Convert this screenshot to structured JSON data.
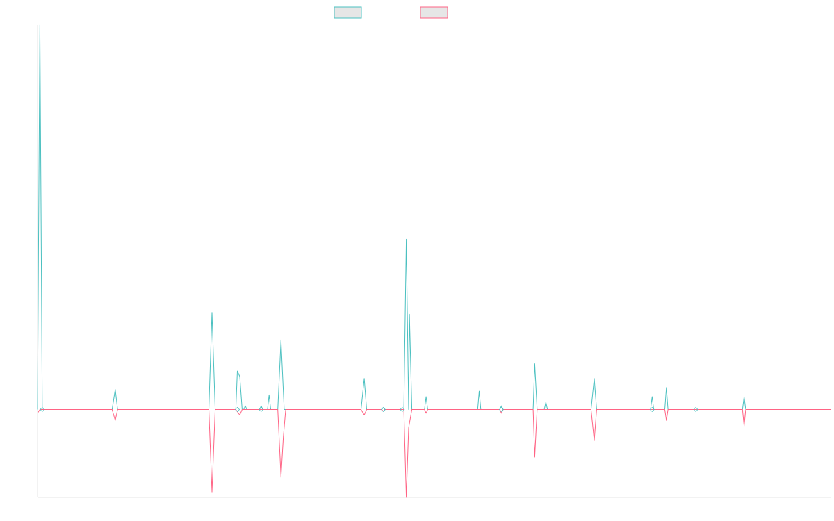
{
  "chart_data": {
    "type": "line",
    "title": "",
    "xlabel": "",
    "ylabel": "",
    "grid": false,
    "legend": "top-center",
    "colors": {
      "series_a": "#4bc0c0",
      "series_b": "#ff6384",
      "axis": "#e5e5e5"
    },
    "ylim": [
      -48,
      210
    ],
    "series": [
      {
        "points": [
          [
            0.0,
            0
          ],
          [
            0.3,
            210
          ],
          [
            0.6,
            0
          ],
          [
            1.0,
            0
          ],
          [
            9.4,
            0
          ],
          [
            9.8,
            11
          ],
          [
            10.1,
            0
          ],
          [
            21.6,
            0
          ],
          [
            22.0,
            53
          ],
          [
            22.4,
            0
          ],
          [
            25.0,
            0
          ],
          [
            25.2,
            21
          ],
          [
            25.5,
            18
          ],
          [
            25.8,
            0
          ],
          [
            26.0,
            0
          ],
          [
            26.2,
            2
          ],
          [
            26.4,
            0
          ],
          [
            28.0,
            0
          ],
          [
            28.2,
            2
          ],
          [
            28.4,
            0
          ],
          [
            29.0,
            0
          ],
          [
            29.2,
            8
          ],
          [
            29.4,
            0
          ],
          [
            30.3,
            0
          ],
          [
            30.7,
            38
          ],
          [
            31.1,
            0
          ],
          [
            40.8,
            0
          ],
          [
            41.2,
            17
          ],
          [
            41.5,
            0
          ],
          [
            43.4,
            0
          ],
          [
            43.6,
            1
          ],
          [
            43.8,
            0
          ],
          [
            46.2,
            0
          ],
          [
            46.5,
            93
          ],
          [
            46.8,
            0
          ],
          [
            46.9,
            52
          ],
          [
            47.2,
            0
          ],
          [
            48.8,
            0
          ],
          [
            49.0,
            7
          ],
          [
            49.2,
            0
          ],
          [
            55.5,
            0
          ],
          [
            55.7,
            10
          ],
          [
            55.9,
            0
          ],
          [
            58.3,
            0
          ],
          [
            58.5,
            2
          ],
          [
            58.7,
            0
          ],
          [
            62.5,
            0
          ],
          [
            62.7,
            25
          ],
          [
            63.0,
            0
          ],
          [
            63.9,
            0
          ],
          [
            64.1,
            4
          ],
          [
            64.3,
            0
          ],
          [
            69.8,
            0
          ],
          [
            70.2,
            17
          ],
          [
            70.5,
            0
          ],
          [
            77.3,
            0
          ],
          [
            77.5,
            7
          ],
          [
            77.7,
            0
          ],
          [
            79.1,
            0
          ],
          [
            79.3,
            12
          ],
          [
            79.5,
            0
          ],
          [
            88.9,
            0
          ],
          [
            89.1,
            7
          ],
          [
            89.3,
            0
          ],
          [
            100.0,
            0
          ]
        ]
      },
      {
        "points": [
          [
            0.0,
            -2
          ],
          [
            0.3,
            0
          ],
          [
            0.6,
            0
          ],
          [
            1.0,
            0
          ],
          [
            9.4,
            0
          ],
          [
            9.8,
            -6
          ],
          [
            10.1,
            0
          ],
          [
            21.6,
            0
          ],
          [
            22.0,
            -45
          ],
          [
            22.4,
            0
          ],
          [
            25.0,
            0
          ],
          [
            25.5,
            -3
          ],
          [
            25.8,
            0
          ],
          [
            28.0,
            0
          ],
          [
            28.2,
            0
          ],
          [
            28.4,
            0
          ],
          [
            30.3,
            0
          ],
          [
            30.7,
            -37
          ],
          [
            31.0,
            -15
          ],
          [
            31.3,
            0
          ],
          [
            40.8,
            0
          ],
          [
            41.2,
            -3
          ],
          [
            41.5,
            0
          ],
          [
            43.4,
            0
          ],
          [
            43.6,
            -1
          ],
          [
            43.8,
            0
          ],
          [
            46.2,
            0
          ],
          [
            46.5,
            -48
          ],
          [
            46.8,
            -10
          ],
          [
            47.2,
            0
          ],
          [
            48.8,
            0
          ],
          [
            49.0,
            -2
          ],
          [
            49.2,
            0
          ],
          [
            58.3,
            0
          ],
          [
            58.5,
            -2
          ],
          [
            58.7,
            0
          ],
          [
            62.5,
            0
          ],
          [
            62.7,
            -26
          ],
          [
            63.0,
            0
          ],
          [
            69.8,
            0
          ],
          [
            70.2,
            -17
          ],
          [
            70.5,
            0
          ],
          [
            79.1,
            0
          ],
          [
            79.3,
            -6
          ],
          [
            79.5,
            0
          ],
          [
            88.9,
            0
          ],
          [
            89.1,
            -9
          ],
          [
            89.3,
            0
          ],
          [
            100.0,
            0
          ]
        ]
      }
    ]
  }
}
